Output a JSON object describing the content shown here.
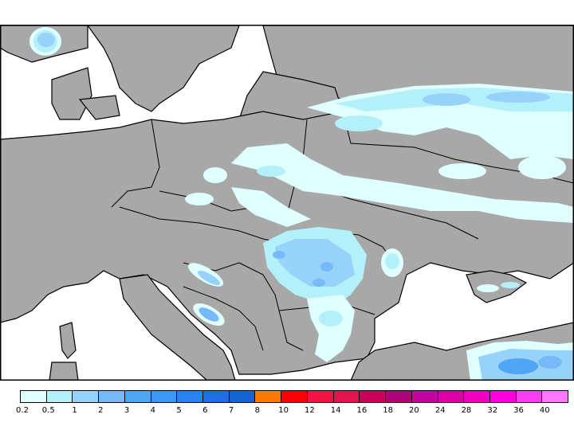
{
  "map": {
    "description": "Precipitation forecast map over Central and Eastern Europe",
    "land_color": "#a8a8a8",
    "sea_color": "#ffffff",
    "border_color": "#000000",
    "regions_with_precip": [
      "Southern Norway",
      "Baltic states / Belarus / Western Russia",
      "Poland",
      "Ukraine",
      "Romania / Moldova",
      "Croatia / Bosnia",
      "Bulgaria",
      "Crimea",
      "Northern Turkey"
    ]
  },
  "legend": {
    "labels": [
      "0.2",
      "0.5",
      "1",
      "2",
      "3",
      "4",
      "5",
      "6",
      "7",
      "8",
      "10",
      "12",
      "14",
      "16",
      "18",
      "20",
      "24",
      "28",
      "32",
      "36",
      "40"
    ],
    "colors": [
      "#e0ffff",
      "#b4f0fa",
      "#96d2fa",
      "#78b9fa",
      "#50a5f5",
      "#3c97f5",
      "#2882f0",
      "#1e6ee6",
      "#1464d2",
      "#ff7800",
      "#fa0000",
      "#f01446",
      "#e11450",
      "#c8005a",
      "#b40078",
      "#c800a0",
      "#dc00a5",
      "#f000be",
      "#ff00dc",
      "#ff3cf5",
      "#ff78ff"
    ]
  },
  "chart_data": {
    "type": "heatmap",
    "title": "",
    "colorbar": {
      "boundaries": [
        0.2,
        0.5,
        1,
        2,
        3,
        4,
        5,
        6,
        7,
        8,
        10,
        12,
        14,
        16,
        18,
        20,
        24,
        28,
        32,
        36,
        40
      ],
      "colors": [
        "#e0ffff",
        "#b4f0fa",
        "#96d2fa",
        "#78b9fa",
        "#50a5f5",
        "#3c97f5",
        "#2882f0",
        "#1e6ee6",
        "#1464d2",
        "#ff7800",
        "#fa0000",
        "#f01446",
        "#e11450",
        "#c8005a",
        "#b40078",
        "#c800a0",
        "#dc00a5",
        "#f000be",
        "#ff00dc",
        "#ff3cf5",
        "#ff78ff"
      ],
      "orientation": "horizontal",
      "position": "bottom"
    },
    "max_observed_category": "3-4",
    "areas": [
      {
        "region": "Southern Norway",
        "max_value_range": "1-2"
      },
      {
        "region": "Western Russia / Belarus",
        "max_value_range": "2-3"
      },
      {
        "region": "Poland / Ukraine",
        "max_value_range": "1-2"
      },
      {
        "region": "Romania (Carpathians)",
        "max_value_range": "2-3"
      },
      {
        "region": "Bosnia / Croatia",
        "max_value_range": "2-3"
      },
      {
        "region": "Northern Turkey (Black Sea coast)",
        "max_value_range": "3-4"
      }
    ]
  }
}
